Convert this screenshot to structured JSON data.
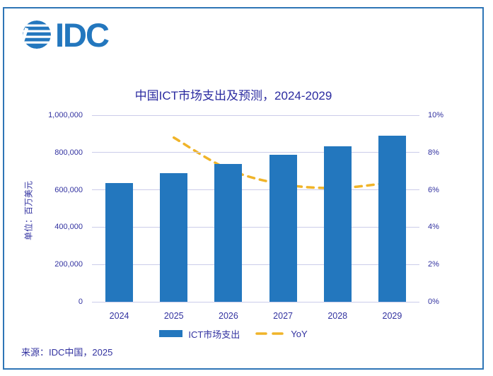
{
  "brand": {
    "logo_text": "IDC",
    "logo_color": "#2377BE"
  },
  "chart_data": {
    "type": "bar",
    "title": "中国ICT市场支出及预测，2024-2029",
    "categories": [
      "2024",
      "2025",
      "2026",
      "2027",
      "2028",
      "2029"
    ],
    "series": [
      {
        "name": "ICT市场支出",
        "type": "bar",
        "axis": "left",
        "color": "#2377BE",
        "values": [
          635000,
          691000,
          740000,
          787000,
          835000,
          890000
        ]
      },
      {
        "name": "YoY",
        "type": "line",
        "axis": "right",
        "color": "#F0B429",
        "style": "dashed",
        "values": [
          null,
          8.8,
          7.1,
          6.3,
          6.1,
          6.4
        ]
      }
    ],
    "left_axis": {
      "label": "单位：百万美元",
      "min": 0,
      "max": 1000000,
      "ticks": [
        "1,000,000",
        "800,000",
        "600,000",
        "400,000",
        "200,000",
        "0"
      ]
    },
    "right_axis": {
      "min": 0,
      "max": 10,
      "ticks": [
        "10%",
        "8%",
        "6%",
        "4%",
        "2%",
        "0%"
      ]
    },
    "grid": true,
    "legend_position": "bottom"
  },
  "source": "来源：IDC中国，2025"
}
